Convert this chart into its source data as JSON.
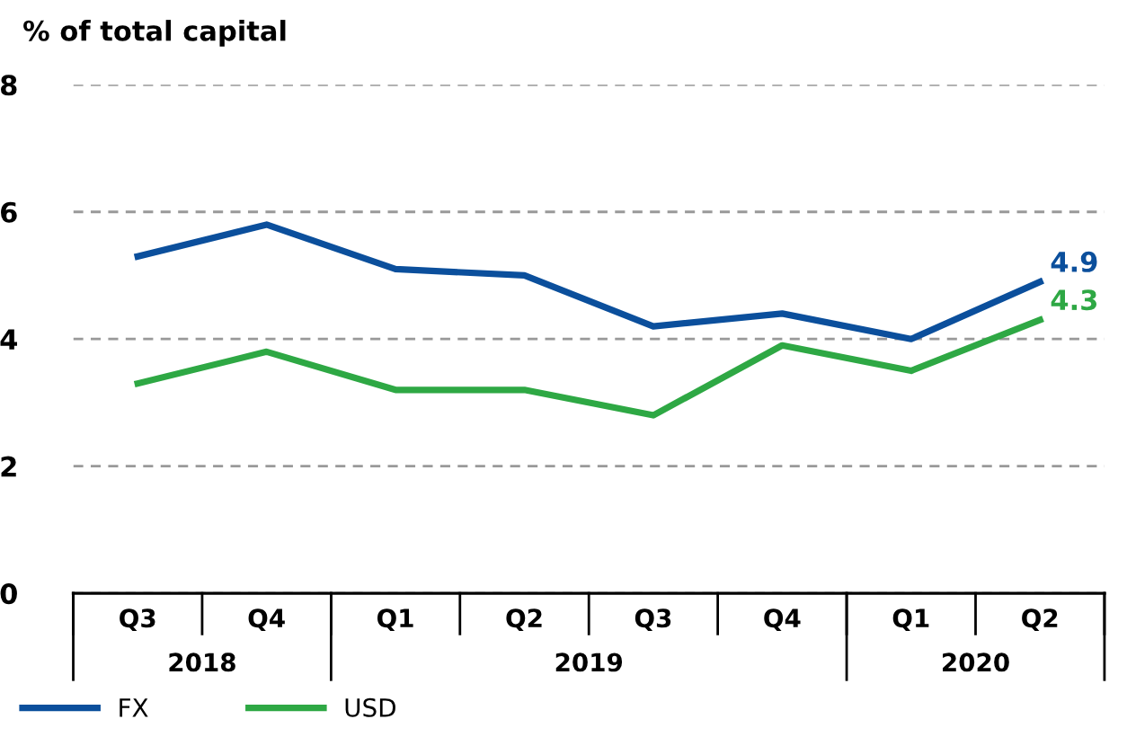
{
  "chart_data": {
    "type": "line",
    "title": "% of total capital",
    "categories": [
      "Q3",
      "Q4",
      "Q1",
      "Q2",
      "Q3",
      "Q4",
      "Q1",
      "Q2"
    ],
    "series": [
      {
        "name": "FX",
        "color": "#0b4f9c",
        "values": [
          5.3,
          5.8,
          5.1,
          5.0,
          4.2,
          4.4,
          4.0,
          4.9
        ],
        "value_labels": [
          null,
          null,
          null,
          null,
          null,
          null,
          null,
          "4.9"
        ]
      },
      {
        "name": "USD",
        "color": "#2ea844",
        "values": [
          3.3,
          3.8,
          3.2,
          3.2,
          2.8,
          3.9,
          3.5,
          4.3
        ],
        "value_labels": [
          null,
          null,
          null,
          null,
          null,
          null,
          null,
          "4.3"
        ]
      }
    ],
    "ylim": [
      0,
      8
    ],
    "yticks": [
      0,
      2,
      4,
      6,
      8
    ],
    "grid": "y",
    "legend": "bottom left",
    "marker": "none",
    "line_style": "solid",
    "annotations": [
      "2018",
      "2019",
      "2020"
    ]
  }
}
